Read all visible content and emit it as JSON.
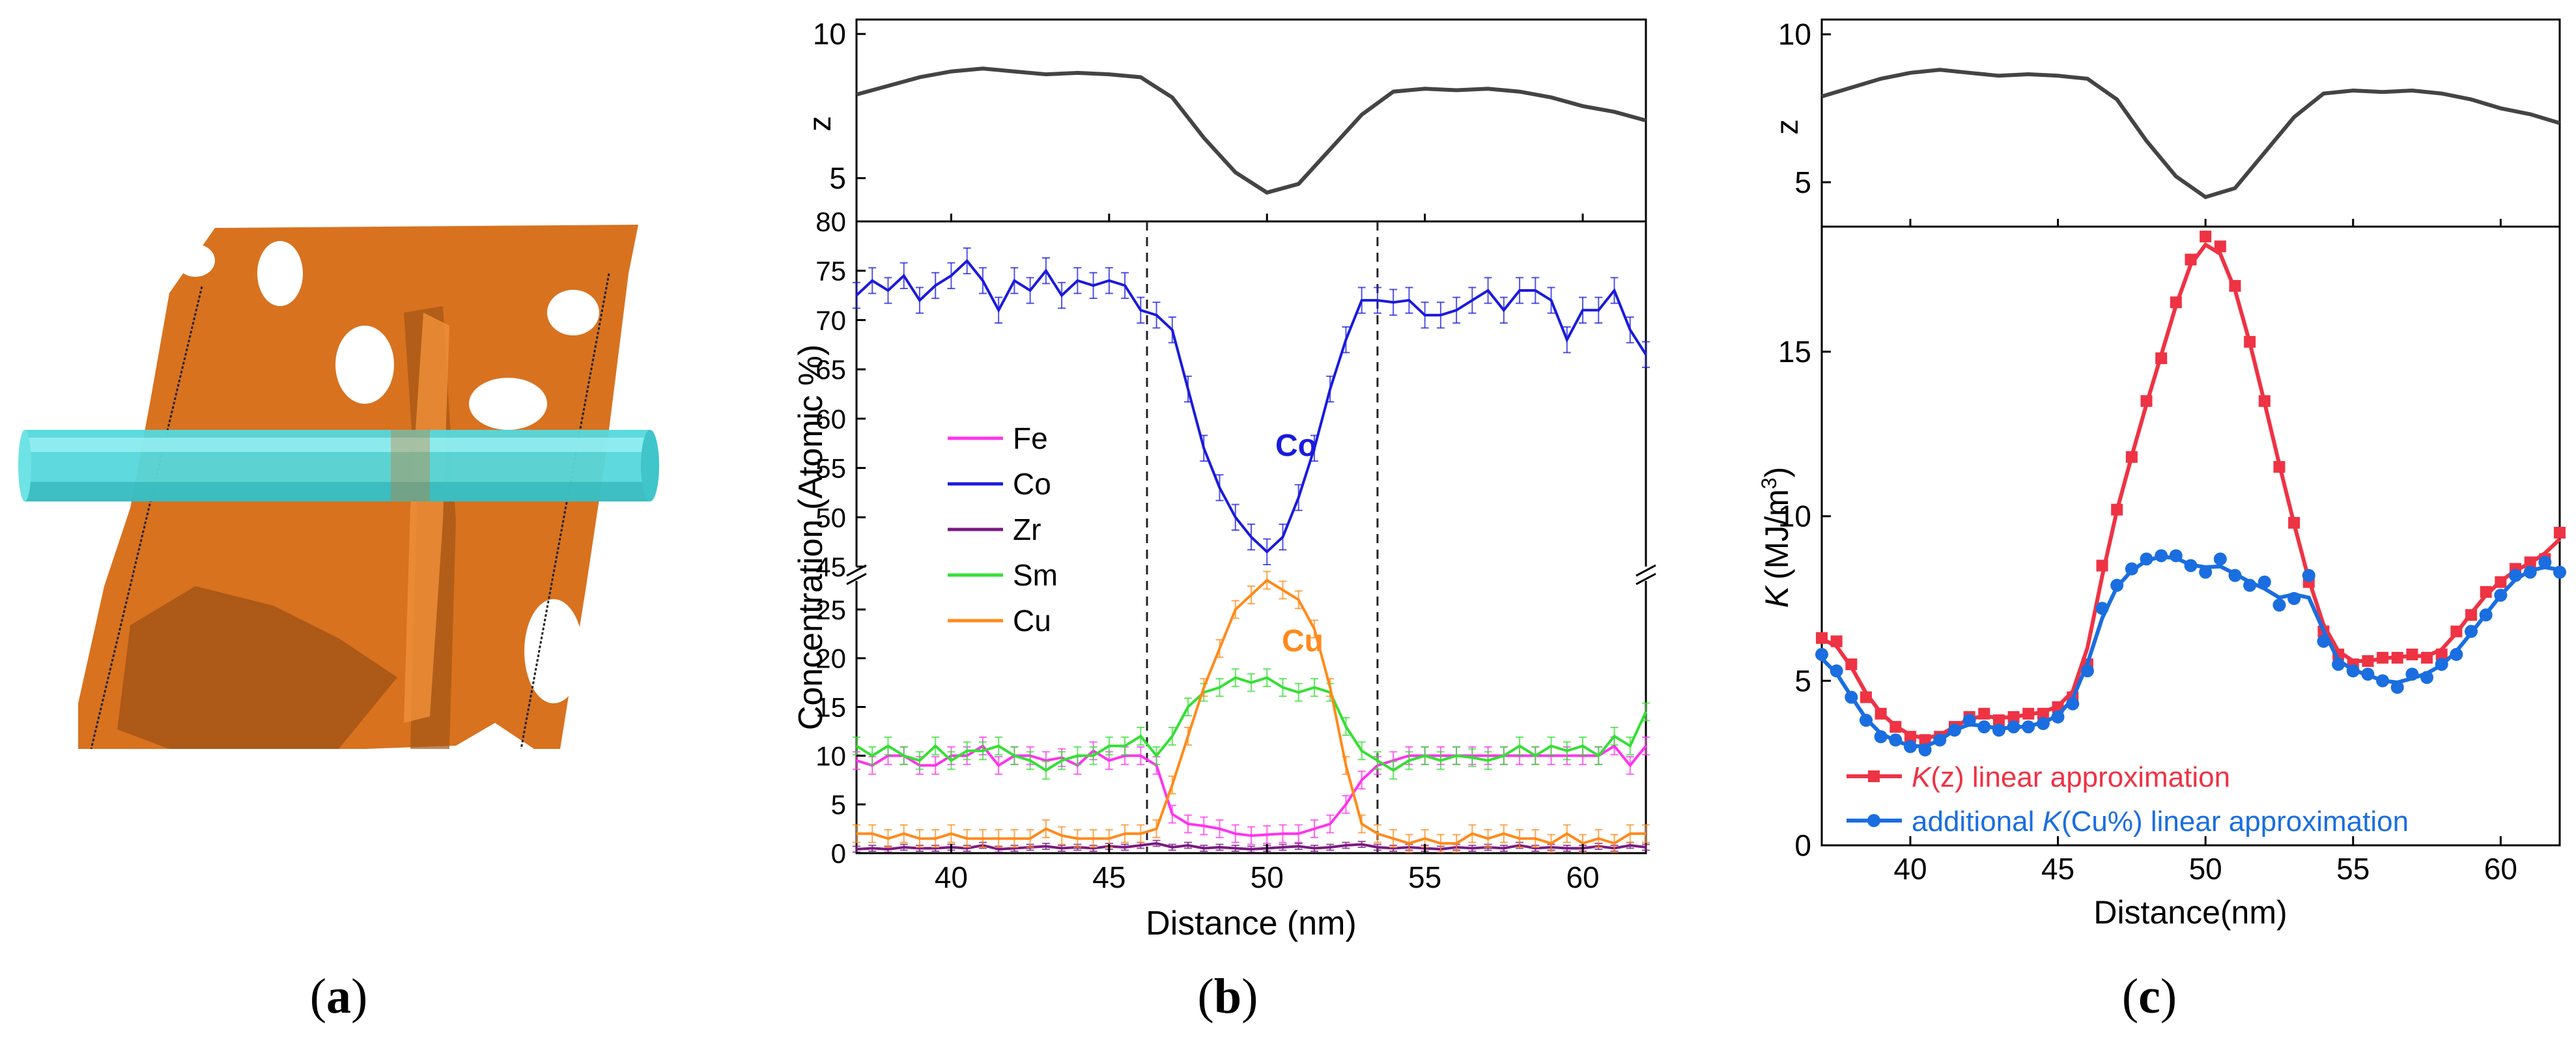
{
  "panels": {
    "a": {
      "label": "(a)",
      "letter": "a"
    },
    "b": {
      "label": "(b)",
      "letter": "b"
    },
    "c": {
      "label": "(c)",
      "letter": "c"
    }
  },
  "colors": {
    "profile": "#444444",
    "Fe": "#ff33ee",
    "Co": "#1a1add",
    "Zr": "#7a1a80",
    "Sm": "#33e033",
    "Cu": "#ff8a1a",
    "Kz": "#ee3344",
    "Kcu": "#1a6ee0",
    "tube": "#55d8dc",
    "orange": "#d8721f"
  },
  "chart_data": [
    {
      "id": "b-top",
      "type": "line",
      "ylabel": "z",
      "yticks": [
        5,
        10
      ],
      "ylim": [
        3.5,
        10.5
      ],
      "xlim": [
        37,
        62
      ],
      "series": [
        {
          "name": "z",
          "x": [
            37,
            38,
            39,
            40,
            41,
            42,
            43,
            44,
            45,
            46,
            47,
            48,
            49,
            50,
            51,
            52,
            53,
            54,
            55,
            56,
            57,
            58,
            59,
            60,
            61,
            62
          ],
          "values": [
            7.9,
            8.2,
            8.5,
            8.7,
            8.8,
            8.7,
            8.6,
            8.65,
            8.6,
            8.5,
            7.8,
            6.4,
            5.2,
            4.5,
            4.8,
            6.0,
            7.2,
            8.0,
            8.1,
            8.05,
            8.1,
            8.0,
            7.8,
            7.5,
            7.3,
            7.0
          ]
        }
      ]
    },
    {
      "id": "b-upper",
      "type": "line",
      "ylabel": "Concentration (Atomic %)",
      "yticks": [
        45,
        50,
        55,
        60,
        65,
        70,
        75,
        80
      ],
      "ylim": [
        45,
        80
      ],
      "xlim": [
        37,
        62
      ],
      "dashed_lines_x": [
        46.2,
        53.5
      ],
      "annotation": "Co",
      "series": [
        {
          "name": "Co",
          "x": [
            37,
            37.5,
            38,
            38.5,
            39,
            39.5,
            40,
            40.5,
            41,
            41.5,
            42,
            42.5,
            43,
            43.5,
            44,
            44.5,
            45,
            45.5,
            46,
            46.5,
            47,
            47.5,
            48,
            48.5,
            49,
            49.5,
            50,
            50.5,
            51,
            51.5,
            52,
            52.5,
            53,
            53.5,
            54,
            54.5,
            55,
            55.5,
            56,
            56.5,
            57,
            57.5,
            58,
            58.5,
            59,
            59.5,
            60,
            60.5,
            61,
            61.5,
            62
          ],
          "values": [
            72.5,
            74,
            73,
            74.5,
            72,
            73.5,
            74.5,
            76,
            74,
            71,
            74,
            73,
            75,
            72.5,
            74,
            73.5,
            74,
            73.5,
            71,
            70.5,
            69,
            63,
            57,
            53,
            50,
            48,
            46.5,
            48,
            52,
            57,
            63,
            68,
            72,
            72,
            71.8,
            72,
            70.5,
            70.5,
            71,
            72,
            73,
            71,
            73,
            73,
            72,
            68,
            71,
            71,
            73,
            69,
            66.5
          ]
        }
      ]
    },
    {
      "id": "b-lower",
      "type": "line",
      "xlabel": "Distance (nm)",
      "xticks": [
        40,
        45,
        50,
        55,
        60
      ],
      "xlim": [
        37,
        62
      ],
      "yticks": [
        0,
        5,
        10,
        15,
        20,
        25
      ],
      "ylim": [
        0,
        28
      ],
      "annotation": "Cu",
      "legend": [
        "Fe",
        "Co",
        "Zr",
        "Sm",
        "Cu"
      ],
      "series": [
        {
          "name": "Fe",
          "x": [
            37,
            37.5,
            38,
            38.5,
            39,
            39.5,
            40,
            40.5,
            41,
            41.5,
            42,
            42.5,
            43,
            43.5,
            44,
            44.5,
            45,
            45.5,
            46,
            46.5,
            47,
            47.5,
            48,
            48.5,
            49,
            49.5,
            50,
            50.5,
            51,
            51.5,
            52,
            52.5,
            53,
            53.5,
            54,
            54.5,
            55,
            55.5,
            56,
            56.5,
            57,
            57.5,
            58,
            58.5,
            59,
            59.5,
            60,
            60.5,
            61,
            61.5,
            62
          ],
          "values": [
            9.5,
            9,
            10,
            10,
            9,
            9,
            10,
            10,
            11,
            9,
            10,
            10,
            9.5,
            9.8,
            9,
            10.5,
            9.5,
            10,
            10,
            9,
            4,
            3,
            2.8,
            2.5,
            2,
            1.8,
            1.9,
            2,
            2,
            2.5,
            3,
            5,
            7.5,
            9,
            9.5,
            10,
            10,
            10,
            10,
            10,
            10,
            10,
            10,
            10,
            10,
            10,
            10,
            10,
            11,
            9,
            11
          ]
        },
        {
          "name": "Zr",
          "x": [
            37,
            37.5,
            38,
            38.5,
            39,
            39.5,
            40,
            40.5,
            41,
            41.5,
            42,
            42.5,
            43,
            43.5,
            44,
            44.5,
            45,
            45.5,
            46,
            46.5,
            47,
            47.5,
            48,
            48.5,
            49,
            49.5,
            50,
            50.5,
            51,
            51.5,
            52,
            52.5,
            53,
            53.5,
            54,
            54.5,
            55,
            55.5,
            56,
            56.5,
            57,
            57.5,
            58,
            58.5,
            59,
            59.5,
            60,
            60.5,
            61,
            61.5,
            62
          ],
          "values": [
            0.4,
            0.5,
            0.4,
            0.6,
            0.5,
            0.5,
            0.6,
            0.5,
            0.8,
            0.4,
            0.5,
            0.6,
            0.7,
            0.5,
            0.6,
            0.5,
            0.7,
            0.6,
            0.8,
            1.0,
            0.6,
            0.8,
            0.5,
            0.6,
            0.5,
            0.4,
            0.5,
            0.6,
            0.7,
            0.5,
            0.6,
            0.8,
            0.9,
            0.6,
            0.5,
            0.6,
            0.5,
            0.4,
            0.6,
            0.5,
            0.6,
            0.5,
            0.8,
            0.5,
            0.6,
            0.5,
            0.5,
            0.7,
            0.5,
            0.8,
            0.6
          ]
        },
        {
          "name": "Sm",
          "x": [
            37,
            37.5,
            38,
            38.5,
            39,
            39.5,
            40,
            40.5,
            41,
            41.5,
            42,
            42.5,
            43,
            43.5,
            44,
            44.5,
            45,
            45.5,
            46,
            46.5,
            47,
            47.5,
            48,
            48.5,
            49,
            49.5,
            50,
            50.5,
            51,
            51.5,
            52,
            52.5,
            53,
            53.5,
            54,
            54.5,
            55,
            55.5,
            56,
            56.5,
            57,
            57.5,
            58,
            58.5,
            59,
            59.5,
            60,
            60.5,
            61,
            61.5,
            62
          ],
          "values": [
            11,
            10,
            11,
            10,
            9.5,
            11,
            9.5,
            10.5,
            10.5,
            11,
            10,
            9.5,
            8.5,
            9.5,
            10,
            10,
            11,
            11,
            12,
            10,
            12,
            15,
            16.5,
            17,
            18,
            17.5,
            18,
            17,
            16.5,
            17,
            16.5,
            13,
            10.5,
            9.5,
            8.5,
            9.5,
            10,
            9.5,
            10,
            9.8,
            9.5,
            10,
            11,
            10,
            11,
            10.5,
            11,
            10,
            12,
            11,
            14.5
          ]
        },
        {
          "name": "Cu",
          "x": [
            37,
            37.5,
            38,
            38.5,
            39,
            39.5,
            40,
            40.5,
            41,
            41.5,
            42,
            42.5,
            43,
            43.5,
            44,
            44.5,
            45,
            45.5,
            46,
            46.5,
            47,
            47.5,
            48,
            48.5,
            49,
            49.5,
            50,
            50.5,
            51,
            51.5,
            52,
            52.5,
            53,
            53.5,
            54,
            54.5,
            55,
            55.5,
            56,
            56.5,
            57,
            57.5,
            58,
            58.5,
            59,
            59.5,
            60,
            60.5,
            61,
            61.5,
            62
          ],
          "values": [
            2,
            2,
            1.5,
            2,
            1.5,
            1.5,
            2,
            1.5,
            1.5,
            1.5,
            1.5,
            1.5,
            2.5,
            1.8,
            1.5,
            1.5,
            1.5,
            2,
            2,
            2.5,
            7,
            12,
            17,
            21,
            25,
            26.5,
            28,
            27,
            26,
            23,
            17,
            9,
            3,
            2,
            1.5,
            1,
            1.5,
            1,
            1,
            2,
            1.5,
            2,
            1.5,
            1.5,
            1,
            2,
            1,
            1.5,
            1,
            2,
            2
          ]
        }
      ]
    },
    {
      "id": "c-top",
      "type": "line",
      "ylabel": "z",
      "yticks": [
        5,
        10
      ],
      "ylim": [
        3.5,
        10.5
      ],
      "xlim": [
        37,
        62
      ],
      "series": [
        {
          "name": "z",
          "x": [
            37,
            38,
            39,
            40,
            41,
            42,
            43,
            44,
            45,
            46,
            47,
            48,
            49,
            50,
            51,
            52,
            53,
            54,
            55,
            56,
            57,
            58,
            59,
            60,
            61,
            62
          ],
          "values": [
            7.9,
            8.2,
            8.5,
            8.7,
            8.8,
            8.7,
            8.6,
            8.65,
            8.6,
            8.5,
            7.8,
            6.4,
            5.2,
            4.5,
            4.8,
            6.0,
            7.2,
            8.0,
            8.1,
            8.05,
            8.1,
            8.0,
            7.8,
            7.5,
            7.3,
            7.0
          ]
        }
      ]
    },
    {
      "id": "c-main",
      "type": "line",
      "xlabel": "Distance(nm)",
      "ylabel_symbol": "K",
      "ylabel_unit": "(MJ/m",
      "ylabel_sup": "3",
      "ylabel_close": ")",
      "xticks": [
        40,
        45,
        50,
        55,
        60
      ],
      "yticks": [
        0,
        5,
        10,
        15
      ],
      "xlim": [
        37,
        62
      ],
      "ylim": [
        0,
        18.8
      ],
      "legend": [
        "K(z) linear approximation",
        "additional K(Cu%) linear approximation"
      ],
      "series": [
        {
          "name": "K(z) linear approximation",
          "legend_sym": "K",
          "legend_arg": "(z)",
          "legend_rest": " linear approximation",
          "x": [
            37,
            37.5,
            38,
            38.5,
            39,
            39.5,
            40,
            40.5,
            41,
            41.5,
            42,
            42.5,
            43,
            43.5,
            44,
            44.5,
            45,
            45.5,
            46,
            46.5,
            47,
            47.5,
            48,
            48.5,
            49,
            49.5,
            50,
            50.5,
            51,
            51.5,
            52,
            52.5,
            53,
            53.5,
            54,
            54.5,
            55,
            55.5,
            56,
            56.5,
            57,
            57.5,
            58,
            58.5,
            59,
            59.5,
            60,
            60.5,
            61,
            61.5,
            62
          ],
          "values": [
            6.3,
            6.2,
            5.5,
            4.5,
            4.0,
            3.6,
            3.3,
            3.2,
            3.3,
            3.6,
            3.9,
            4.0,
            3.8,
            3.9,
            4.0,
            4.0,
            4.2,
            4.5,
            5.5,
            8.5,
            10.2,
            11.8,
            13.5,
            14.8,
            16.5,
            17.8,
            18.5,
            18.2,
            17.0,
            15.3,
            13.5,
            11.5,
            9.8,
            8.0,
            6.5,
            5.8,
            5.5,
            5.6,
            5.7,
            5.7,
            5.8,
            5.7,
            5.8,
            6.5,
            7.0,
            7.7,
            8.0,
            8.4,
            8.6,
            8.7,
            9.5
          ]
        },
        {
          "name": "additional K(Cu%) linear approximation",
          "legend_sym": "K",
          "legend_arg": "(Cu%)",
          "legend_rest": " linear approximation",
          "legend_prefix": "additional ",
          "x": [
            37,
            37.5,
            38,
            38.5,
            39,
            39.5,
            40,
            40.5,
            41,
            41.5,
            42,
            42.5,
            43,
            43.5,
            44,
            44.5,
            45,
            45.5,
            46,
            46.5,
            47,
            47.5,
            48,
            48.5,
            49,
            49.5,
            50,
            50.5,
            51,
            51.5,
            52,
            52.5,
            53,
            53.5,
            54,
            54.5,
            55,
            55.5,
            56,
            56.5,
            57,
            57.5,
            58,
            58.5,
            59,
            59.5,
            60,
            60.5,
            61,
            61.5,
            62
          ],
          "values": [
            5.8,
            5.3,
            4.5,
            3.8,
            3.3,
            3.2,
            3.0,
            2.9,
            3.2,
            3.5,
            3.8,
            3.6,
            3.5,
            3.6,
            3.6,
            3.7,
            3.9,
            4.3,
            5.3,
            7.2,
            7.9,
            8.4,
            8.7,
            8.8,
            8.8,
            8.5,
            8.3,
            8.7,
            8.2,
            7.9,
            8.0,
            7.3,
            7.5,
            8.2,
            6.2,
            5.5,
            5.3,
            5.2,
            5.0,
            4.8,
            5.2,
            5.1,
            5.5,
            5.8,
            6.5,
            7.0,
            7.6,
            8.2,
            8.3,
            8.6,
            8.3
          ]
        }
      ]
    }
  ]
}
